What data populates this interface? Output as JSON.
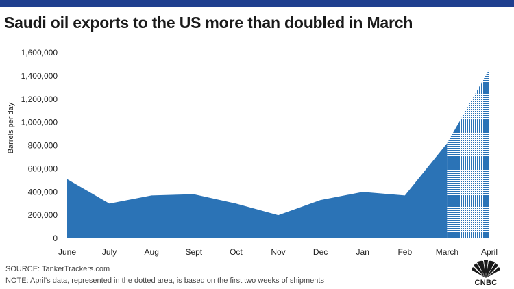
{
  "header": {
    "title": "Saudi oil exports to the US more than doubled in March"
  },
  "chart_data": {
    "type": "area",
    "title": "Saudi oil exports to the US more than doubled in March",
    "xlabel": "",
    "ylabel": "Barrels per day",
    "categories": [
      "June",
      "July",
      "Aug",
      "Sept",
      "Oct",
      "Nov",
      "Dec",
      "Jan",
      "Feb",
      "March",
      "April"
    ],
    "values": [
      510000,
      300000,
      370000,
      380000,
      300000,
      200000,
      330000,
      400000,
      370000,
      820000,
      1460000
    ],
    "ylim": [
      0,
      1600000
    ],
    "yticks": [
      0,
      200000,
      400000,
      600000,
      800000,
      1000000,
      1200000,
      1400000,
      1600000
    ],
    "ytick_labels": [
      "0",
      "200,000",
      "400,000",
      "600,000",
      "800,000",
      "1,000,000",
      "1,200,000",
      "1,400,000",
      "1,600,000"
    ],
    "grid": false,
    "colors": {
      "area": "#2b73b6",
      "dotted": "#2b73b6"
    },
    "dotted_segment": {
      "from": "March",
      "to": "April"
    }
  },
  "footer": {
    "source": "SOURCE:  TankerTrackers.com",
    "note": "NOTE: April's data, represented in the dotted area, is based on the first two weeks of shipments"
  },
  "logo": {
    "text": "CNBC",
    "icon": "peacock-icon"
  }
}
